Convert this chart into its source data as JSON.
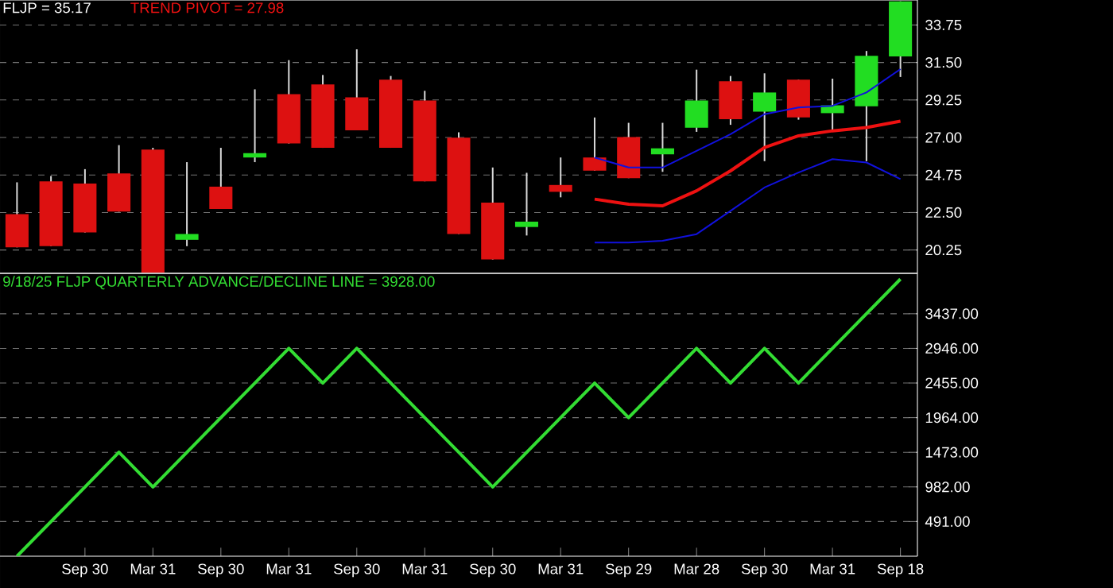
{
  "chart_data": [
    {
      "type": "candlestick",
      "title": "FLJP = 35.17",
      "categories": [
        null,
        null,
        null,
        null,
        null,
        null,
        null,
        null,
        null,
        null,
        null,
        null,
        null,
        null,
        null,
        null,
        null,
        null,
        null,
        null,
        null,
        null,
        null,
        null,
        null,
        null,
        null
      ],
      "ohlc": [
        [
          22.4,
          24.31,
          20.41,
          20.41
        ],
        [
          24.37,
          24.69,
          20.48,
          20.48
        ],
        [
          24.24,
          25.1,
          21.3,
          21.3
        ],
        [
          24.85,
          26.54,
          22.55,
          22.55
        ],
        [
          26.28,
          26.38,
          18.9,
          18.9
        ],
        [
          20.86,
          25.52,
          20.48,
          21.21
        ],
        [
          24.05,
          26.38,
          22.71,
          22.71
        ],
        [
          25.8,
          29.89,
          25.52,
          26.06
        ],
        [
          29.6,
          31.64,
          26.64,
          26.64
        ],
        [
          30.18,
          30.75,
          26.38,
          26.38
        ],
        [
          29.41,
          32.29,
          27.43,
          27.43
        ],
        [
          30.47,
          30.69,
          26.38,
          26.38
        ],
        [
          29.22,
          29.8,
          24.37,
          24.37
        ],
        [
          26.99,
          27.31,
          21.21,
          21.21
        ],
        [
          23.09,
          25.2,
          19.68,
          19.68
        ],
        [
          21.63,
          24.88,
          21.12,
          21.95
        ],
        [
          24.15,
          25.8,
          23.41,
          23.74
        ],
        [
          25.8,
          28.2,
          25.01,
          25.01
        ],
        [
          27.02,
          27.88,
          24.56,
          24.56
        ],
        [
          25.99,
          27.88,
          24.94,
          26.35
        ],
        [
          27.59,
          31.07,
          27.34,
          29.22
        ],
        [
          30.37,
          30.69,
          27.76,
          28.1
        ],
        [
          28.55,
          30.85,
          25.58,
          29.7
        ],
        [
          30.47,
          30.47,
          28.07,
          28.2
        ],
        [
          28.46,
          30.53,
          27.4,
          28.93
        ],
        [
          28.87,
          32.19,
          25.58,
          31.9
        ],
        [
          31.87,
          35.17,
          30.63,
          35.17
        ]
      ],
      "colors": [
        "#dd1111",
        "#dd1111",
        "#dd1111",
        "#dd1111",
        "#dd1111",
        "#22dd22",
        "#dd1111",
        "#22dd22",
        "#dd1111",
        "#dd1111",
        "#dd1111",
        "#dd1111",
        "#dd1111",
        "#dd1111",
        "#dd1111",
        "#22dd22",
        "#dd1111",
        "#dd1111",
        "#dd1111",
        "#22dd22",
        "#22dd22",
        "#dd1111",
        "#22dd22",
        "#dd1111",
        "#22dd22",
        "#22dd22",
        "#22dd22"
      ],
      "series": [
        {
          "type": "line",
          "name": "TREND PIVOT = 27.98",
          "color": "#ee1111",
          "values": [
            null,
            null,
            null,
            null,
            null,
            null,
            null,
            null,
            null,
            null,
            null,
            null,
            null,
            null,
            null,
            null,
            null,
            23.3,
            23.0,
            22.9,
            23.8,
            25.0,
            26.4,
            27.1,
            27.4,
            27.6,
            27.98
          ]
        },
        {
          "type": "line",
          "color": "#1111dd",
          "values": [
            null,
            null,
            null,
            null,
            null,
            null,
            null,
            null,
            null,
            null,
            null,
            null,
            null,
            null,
            null,
            null,
            null,
            25.8,
            25.2,
            25.2,
            26.2,
            27.2,
            28.4,
            28.8,
            28.9,
            29.7,
            31.1
          ]
        },
        {
          "type": "line",
          "color": "#1111dd",
          "values": [
            null,
            null,
            null,
            null,
            null,
            null,
            null,
            null,
            null,
            null,
            null,
            null,
            null,
            null,
            null,
            null,
            null,
            20.7,
            20.7,
            20.8,
            21.2,
            22.6,
            24.0,
            24.9,
            25.7,
            25.5,
            24.5
          ]
        }
      ],
      "ylim": [
        18.85,
        35.25
      ],
      "yticks": [
        {
          "value": 20.25,
          "label": "20.25"
        },
        {
          "value": 22.5,
          "label": "22.50"
        },
        {
          "value": 24.75,
          "label": "24.75"
        },
        {
          "value": 27,
          "label": "27.00"
        },
        {
          "value": 29.25,
          "label": "29.25"
        },
        {
          "value": 31.5,
          "label": "31.50"
        },
        {
          "value": 33.75,
          "label": "33.75"
        }
      ],
      "grid": "y",
      "tick_labels": "y"
    },
    {
      "type": "line",
      "categories": [
        null,
        null,
        "Sep 30",
        null,
        "Mar 31",
        null,
        "Sep 30",
        null,
        "Mar 31",
        null,
        "Sep 30",
        null,
        "Mar 31",
        null,
        "Sep 30",
        null,
        "Mar 31",
        null,
        "Sep 29",
        null,
        "Mar 28",
        null,
        "Sep 30",
        null,
        "Mar 31",
        null,
        "Sep 18"
      ],
      "series": [
        {
          "name": "9/18/25  FLJP QUARTERLY ADVANCE/DECLINE LINE = 3928.00",
          "color": "#33dd33",
          "values": [
            0,
            491,
            982,
            1473,
            982,
            1473,
            1964,
            2455,
            2946,
            2455,
            2946,
            2455,
            1964,
            1473,
            982,
            1473,
            1964,
            2455,
            1964,
            2455,
            2946,
            2455,
            2946,
            2455,
            2946,
            3437,
            3928
          ]
        }
      ],
      "ylim": [
        0,
        4010
      ],
      "yticks": [
        {
          "value": 491,
          "label": "491.00"
        },
        {
          "value": 982,
          "label": "982.00"
        },
        {
          "value": 1473,
          "label": "1473.00"
        },
        {
          "value": 1964,
          "label": "1964.00"
        },
        {
          "value": 2455,
          "label": "2455.00"
        },
        {
          "value": 2946,
          "label": "2946.00"
        },
        {
          "value": 3437,
          "label": "3437.00"
        }
      ],
      "grid": "y"
    }
  ]
}
